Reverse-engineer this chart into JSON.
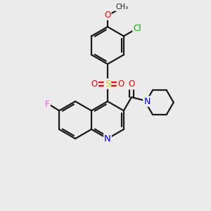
{
  "bg_color": "#ebebeb",
  "bond_color": "#1a1a1a",
  "bond_width": 1.6,
  "atom_colors": {
    "N": "#0000ff",
    "O": "#ff0000",
    "S": "#cccc00",
    "F": "#ff44ff",
    "Cl": "#00aa00",
    "C": "#1a1a1a"
  },
  "font_size": 8.5,
  "fig_size": [
    3.0,
    3.0
  ],
  "dpi": 100
}
